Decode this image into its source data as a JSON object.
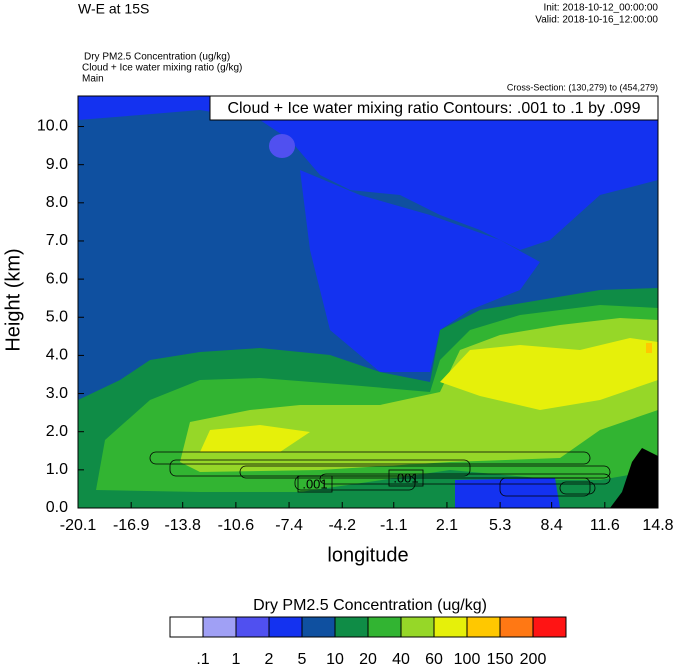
{
  "chart_data": {
    "type": "contour",
    "title": "W-E at 15S",
    "init": "Init: 2018-10-12_00:00:00",
    "valid": "Valid: 2018-10-16_12:00:00",
    "field_title": "Dry PM2.5 Concentration   (ug/kg)",
    "contour_title": "Cloud + Ice water mixing ratio   (g/kg)",
    "run": "Main",
    "cross_section": "Cross-Section: (130,279) to (454,279)",
    "contour_note": "Cloud + Ice water mixing ratio Contours: .001 to .1 by .099",
    "contour_labels": [
      ".001",
      ".001"
    ],
    "xlabel": "longitude",
    "ylabel": "Height (km)",
    "xlim": [
      -20.1,
      14.8
    ],
    "ylim": [
      0,
      10.8
    ],
    "xticks": [
      -20.1,
      -16.9,
      -13.8,
      -10.6,
      -7.4,
      -4.2,
      -1.1,
      2.1,
      5.3,
      8.4,
      11.6,
      14.8
    ],
    "yticks": [
      {
        "value": 0,
        "label": "0.0"
      },
      {
        "value": 1,
        "label": "1.0"
      },
      {
        "value": 2,
        "label": "2.0"
      },
      {
        "value": 3,
        "label": "3.0"
      },
      {
        "value": 4,
        "label": "4.0"
      },
      {
        "value": 5,
        "label": "5.0"
      },
      {
        "value": 6,
        "label": "6.0"
      },
      {
        "value": 7,
        "label": "7.0"
      },
      {
        "value": 8,
        "label": "8.0"
      },
      {
        "value": 9,
        "label": "9.0"
      },
      {
        "value": 10,
        "label": "10.0"
      }
    ],
    "colorbar": {
      "title": "Dry PM2.5 Concentration  (ug/kg)",
      "levels": [
        {
          "value": 0.1,
          "label": ".1"
        },
        1,
        2,
        5,
        10,
        20,
        40,
        60,
        100,
        150,
        200
      ],
      "colors": [
        "#ffffff",
        "#a0a0f5",
        "#5050f0",
        "#1432f0",
        "#0f50a0",
        "#0f8c46",
        "#32b432",
        "#96d728",
        "#e6f00a",
        "#ffc800",
        "#ff7814",
        "#ff1414"
      ]
    }
  }
}
